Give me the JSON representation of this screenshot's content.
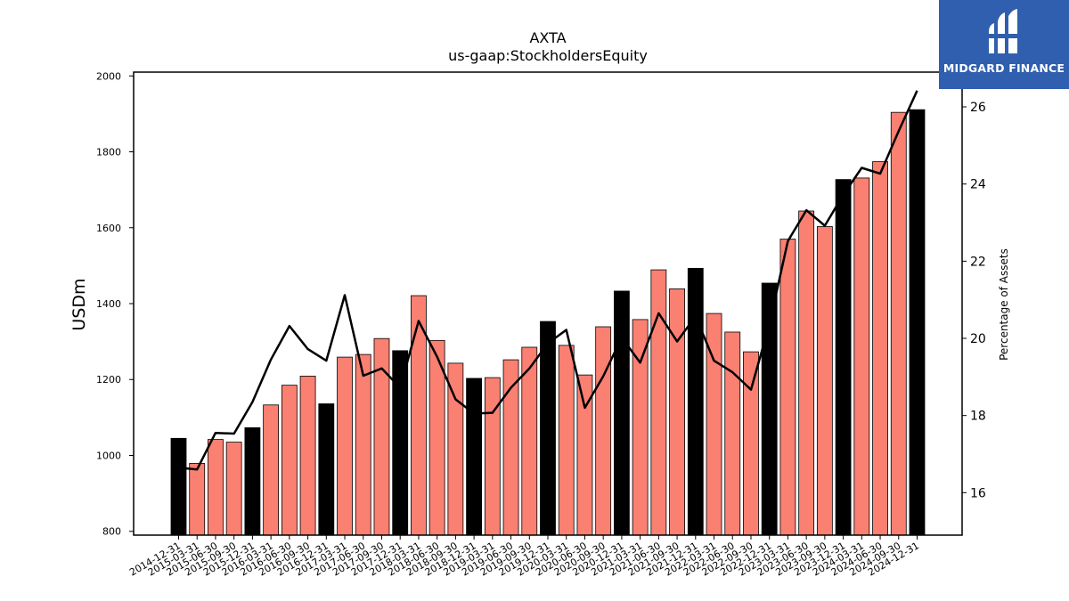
{
  "logo": {
    "text": "MIDGARD FINANCE",
    "background": "#2f5fae"
  },
  "chart_data": {
    "type": "bar",
    "title": "AXTA",
    "subtitle": "us-gaap:StockholdersEquity",
    "ylabel": "USDm",
    "y2label": "Percentage of Assets",
    "ylim": [
      790,
      2010
    ],
    "y2lim": [
      14.9,
      26.9
    ],
    "yticks": [
      800,
      1000,
      1200,
      1400,
      1600,
      1800,
      2000
    ],
    "y2ticks": [
      16,
      18,
      20,
      22,
      24,
      26
    ],
    "grid": false,
    "colors": {
      "annual": "#000000",
      "quarterly": "#fa8072",
      "line": "#000000"
    },
    "categories": [
      "2014-12-31",
      "2015-03-31",
      "2015-06-30",
      "2015-09-30",
      "2015-12-31",
      "2016-03-31",
      "2016-06-30",
      "2016-09-30",
      "2016-12-31",
      "2017-03-31",
      "2017-06-30",
      "2017-09-30",
      "2017-12-31",
      "2018-03-31",
      "2018-06-30",
      "2018-09-30",
      "2018-12-31",
      "2019-03-31",
      "2019-06-30",
      "2019-09-30",
      "2019-12-31",
      "2020-03-31",
      "2020-06-30",
      "2020-09-30",
      "2020-12-31",
      "2021-03-31",
      "2021-06-30",
      "2021-09-30",
      "2021-12-31",
      "2022-03-31",
      "2022-06-30",
      "2022-09-30",
      "2022-12-31",
      "2023-03-31",
      "2023-06-30",
      "2023-09-30",
      "2023-12-31",
      "2024-03-31",
      "2024-06-30",
      "2024-09-30",
      "2024-12-31"
    ],
    "series": [
      {
        "kind": "bar",
        "values": [
          1045,
          979,
          1042,
          1035,
          1073,
          1133,
          1185,
          1209,
          1136,
          1259,
          1266,
          1308,
          1276,
          1421,
          1303,
          1243,
          1203,
          1205,
          1252,
          1285,
          1353,
          1290,
          1212,
          1339,
          1433,
          1358,
          1489,
          1439,
          1493,
          1374,
          1325,
          1273,
          1454,
          1570,
          1644,
          1603,
          1727,
          1731,
          1774,
          1904,
          1911
        ]
      },
      {
        "kind": "line",
        "axis": "right",
        "values": [
          16.65,
          16.6,
          17.55,
          17.53,
          18.35,
          19.45,
          20.32,
          19.72,
          19.42,
          21.12,
          19.03,
          19.22,
          18.72,
          20.45,
          19.52,
          18.42,
          18.05,
          18.07,
          18.72,
          19.22,
          19.87,
          20.22,
          18.2,
          19.02,
          20.02,
          19.37,
          20.65,
          19.92,
          20.57,
          19.42,
          19.12,
          18.67,
          20.37,
          22.52,
          23.32,
          22.92,
          23.72,
          24.42,
          24.27,
          25.37,
          26.42
        ]
      }
    ]
  }
}
